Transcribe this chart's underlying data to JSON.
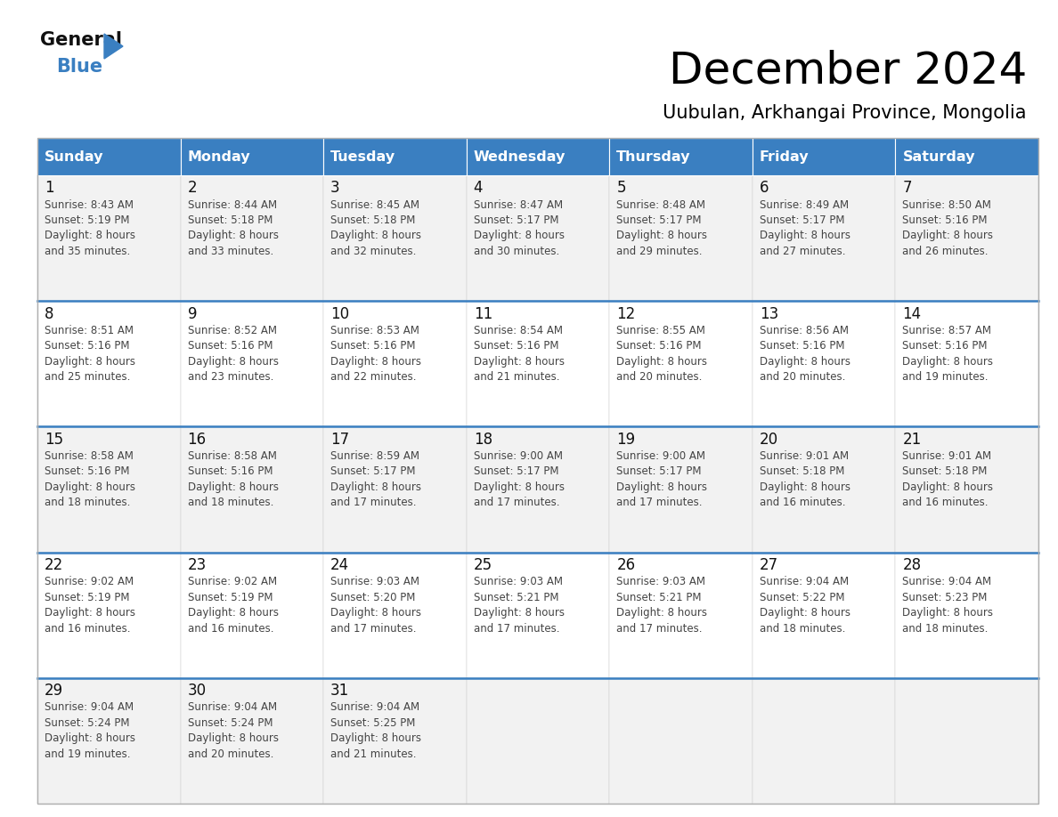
{
  "title": "December 2024",
  "subtitle": "Uubulan, Arkhangai Province, Mongolia",
  "header_color": "#3a7fc1",
  "header_text_color": "#ffffff",
  "days_of_week": [
    "Sunday",
    "Monday",
    "Tuesday",
    "Wednesday",
    "Thursday",
    "Friday",
    "Saturday"
  ],
  "cell_bg_even": "#f2f2f2",
  "cell_bg_odd": "#ffffff",
  "separator_color": "#3a7fc1",
  "text_color": "#444444",
  "date_color": "#111111",
  "logo_general_color": "#111111",
  "logo_blue_color": "#3a7fc1",
  "calendar_data": [
    [
      {
        "day": 1,
        "sunrise": "8:43 AM",
        "sunset": "5:19 PM",
        "daylight": "8 hours and 35 minutes."
      },
      {
        "day": 2,
        "sunrise": "8:44 AM",
        "sunset": "5:18 PM",
        "daylight": "8 hours and 33 minutes."
      },
      {
        "day": 3,
        "sunrise": "8:45 AM",
        "sunset": "5:18 PM",
        "daylight": "8 hours and 32 minutes."
      },
      {
        "day": 4,
        "sunrise": "8:47 AM",
        "sunset": "5:17 PM",
        "daylight": "8 hours and 30 minutes."
      },
      {
        "day": 5,
        "sunrise": "8:48 AM",
        "sunset": "5:17 PM",
        "daylight": "8 hours and 29 minutes."
      },
      {
        "day": 6,
        "sunrise": "8:49 AM",
        "sunset": "5:17 PM",
        "daylight": "8 hours and 27 minutes."
      },
      {
        "day": 7,
        "sunrise": "8:50 AM",
        "sunset": "5:16 PM",
        "daylight": "8 hours and 26 minutes."
      }
    ],
    [
      {
        "day": 8,
        "sunrise": "8:51 AM",
        "sunset": "5:16 PM",
        "daylight": "8 hours and 25 minutes."
      },
      {
        "day": 9,
        "sunrise": "8:52 AM",
        "sunset": "5:16 PM",
        "daylight": "8 hours and 23 minutes."
      },
      {
        "day": 10,
        "sunrise": "8:53 AM",
        "sunset": "5:16 PM",
        "daylight": "8 hours and 22 minutes."
      },
      {
        "day": 11,
        "sunrise": "8:54 AM",
        "sunset": "5:16 PM",
        "daylight": "8 hours and 21 minutes."
      },
      {
        "day": 12,
        "sunrise": "8:55 AM",
        "sunset": "5:16 PM",
        "daylight": "8 hours and 20 minutes."
      },
      {
        "day": 13,
        "sunrise": "8:56 AM",
        "sunset": "5:16 PM",
        "daylight": "8 hours and 20 minutes."
      },
      {
        "day": 14,
        "sunrise": "8:57 AM",
        "sunset": "5:16 PM",
        "daylight": "8 hours and 19 minutes."
      }
    ],
    [
      {
        "day": 15,
        "sunrise": "8:58 AM",
        "sunset": "5:16 PM",
        "daylight": "8 hours and 18 minutes."
      },
      {
        "day": 16,
        "sunrise": "8:58 AM",
        "sunset": "5:16 PM",
        "daylight": "8 hours and 18 minutes."
      },
      {
        "day": 17,
        "sunrise": "8:59 AM",
        "sunset": "5:17 PM",
        "daylight": "8 hours and 17 minutes."
      },
      {
        "day": 18,
        "sunrise": "9:00 AM",
        "sunset": "5:17 PM",
        "daylight": "8 hours and 17 minutes."
      },
      {
        "day": 19,
        "sunrise": "9:00 AM",
        "sunset": "5:17 PM",
        "daylight": "8 hours and 17 minutes."
      },
      {
        "day": 20,
        "sunrise": "9:01 AM",
        "sunset": "5:18 PM",
        "daylight": "8 hours and 16 minutes."
      },
      {
        "day": 21,
        "sunrise": "9:01 AM",
        "sunset": "5:18 PM",
        "daylight": "8 hours and 16 minutes."
      }
    ],
    [
      {
        "day": 22,
        "sunrise": "9:02 AM",
        "sunset": "5:19 PM",
        "daylight": "8 hours and 16 minutes."
      },
      {
        "day": 23,
        "sunrise": "9:02 AM",
        "sunset": "5:19 PM",
        "daylight": "8 hours and 16 minutes."
      },
      {
        "day": 24,
        "sunrise": "9:03 AM",
        "sunset": "5:20 PM",
        "daylight": "8 hours and 17 minutes."
      },
      {
        "day": 25,
        "sunrise": "9:03 AM",
        "sunset": "5:21 PM",
        "daylight": "8 hours and 17 minutes."
      },
      {
        "day": 26,
        "sunrise": "9:03 AM",
        "sunset": "5:21 PM",
        "daylight": "8 hours and 17 minutes."
      },
      {
        "day": 27,
        "sunrise": "9:04 AM",
        "sunset": "5:22 PM",
        "daylight": "8 hours and 18 minutes."
      },
      {
        "day": 28,
        "sunrise": "9:04 AM",
        "sunset": "5:23 PM",
        "daylight": "8 hours and 18 minutes."
      }
    ],
    [
      {
        "day": 29,
        "sunrise": "9:04 AM",
        "sunset": "5:24 PM",
        "daylight": "8 hours and 19 minutes."
      },
      {
        "day": 30,
        "sunrise": "9:04 AM",
        "sunset": "5:24 PM",
        "daylight": "8 hours and 20 minutes."
      },
      {
        "day": 31,
        "sunrise": "9:04 AM",
        "sunset": "5:25 PM",
        "daylight": "8 hours and 21 minutes."
      },
      null,
      null,
      null,
      null
    ]
  ]
}
